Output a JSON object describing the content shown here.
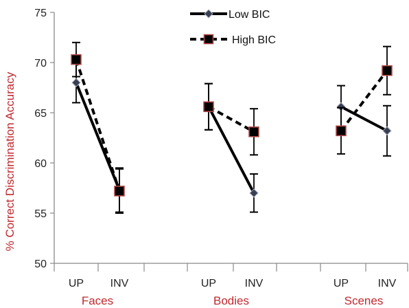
{
  "chart_data": {
    "type": "line",
    "ylabel": "% Correct Discrimination Accuracy",
    "ylim": [
      50,
      75
    ],
    "yticks": [
      50,
      55,
      60,
      65,
      70,
      75
    ],
    "groups": [
      {
        "name": "Faces",
        "conditions": [
          "UP",
          "INV"
        ]
      },
      {
        "name": "Bodies",
        "conditions": [
          "UP",
          "INV"
        ]
      },
      {
        "name": "Scenes",
        "conditions": [
          "UP",
          "INV"
        ]
      }
    ],
    "series": [
      {
        "name": "Low BIC",
        "line_style": "solid",
        "marker": "diamond",
        "values": [
          [
            68.0,
            57.3
          ],
          [
            65.6,
            57.0
          ],
          [
            65.6,
            63.2
          ]
        ],
        "errors": [
          [
            2.0,
            2.2
          ],
          [
            2.3,
            1.9
          ],
          [
            2.1,
            2.5
          ]
        ]
      },
      {
        "name": "High BIC",
        "line_style": "dashed",
        "marker": "square",
        "values": [
          [
            70.3,
            57.2
          ],
          [
            65.6,
            63.1
          ],
          [
            63.2,
            69.2
          ]
        ],
        "errors": [
          [
            1.7,
            2.2
          ],
          [
            2.3,
            2.3
          ],
          [
            2.3,
            2.4
          ]
        ]
      }
    ],
    "legend_position": "top-center",
    "grid": false,
    "colors": {
      "axis": "#888888",
      "line": "#000000",
      "diamond_fill": "#3b3f52",
      "square_fill": "#000000",
      "square_edge": "#b34a4a",
      "label_red": "#c0282e"
    }
  }
}
